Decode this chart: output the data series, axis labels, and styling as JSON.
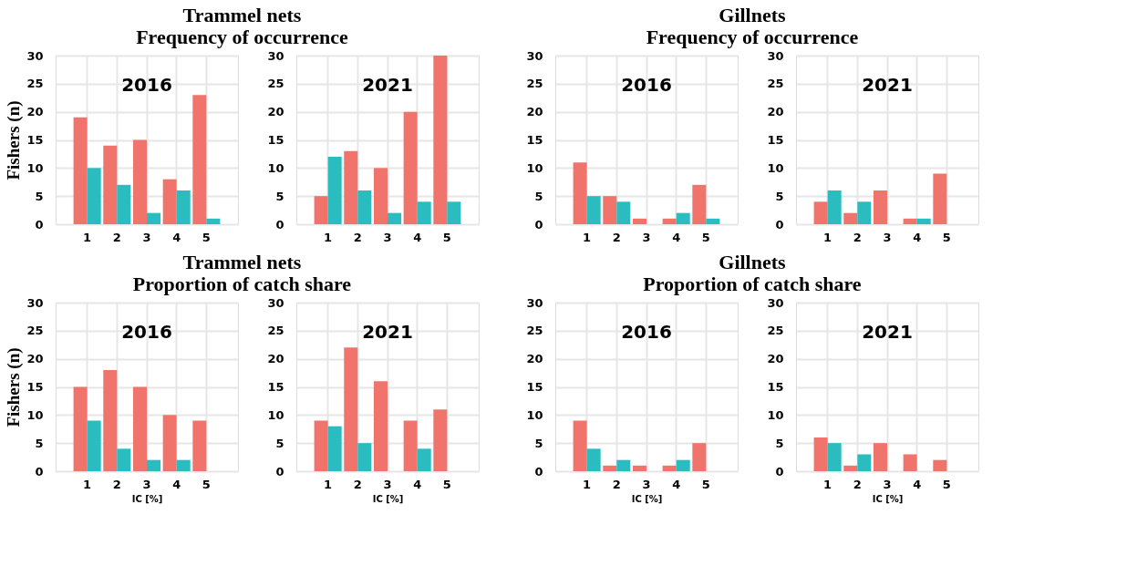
{
  "chart_data": [
    {
      "type": "bar",
      "title": "2016",
      "annotations": [
        "Trammel nets",
        "Frequency of occurrence"
      ],
      "ylabel": "Fishers (n)",
      "categories": [
        "1",
        "2",
        "3",
        "4",
        "5"
      ],
      "series": [
        {
          "color": "#f0736c",
          "values": [
            19,
            14,
            15,
            8,
            23
          ]
        },
        {
          "color": "#2bbcbf",
          "values": [
            10,
            7,
            2,
            6,
            1
          ]
        }
      ],
      "ylim": [
        0,
        30
      ],
      "yticks": [
        0,
        5,
        10,
        15,
        20,
        25,
        30
      ],
      "grid": true
    },
    {
      "type": "bar",
      "title": "2021",
      "categories": [
        "1",
        "2",
        "3",
        "4",
        "5"
      ],
      "series": [
        {
          "color": "#f0736c",
          "values": [
            5,
            13,
            10,
            20,
            30
          ]
        },
        {
          "color": "#2bbcbf",
          "values": [
            12,
            6,
            2,
            4,
            4
          ]
        }
      ],
      "ylim": [
        0,
        30
      ],
      "yticks": [
        0,
        5,
        10,
        15,
        20,
        25,
        30
      ],
      "grid": true
    },
    {
      "type": "bar",
      "title": "2016",
      "annotations": [
        "Gillnets",
        "Frequency of occurrence"
      ],
      "categories": [
        "1",
        "2",
        "3",
        "4",
        "5"
      ],
      "series": [
        {
          "color": "#f0736c",
          "values": [
            11,
            5,
            1,
            1,
            7
          ]
        },
        {
          "color": "#2bbcbf",
          "values": [
            5,
            4,
            null,
            2,
            1
          ]
        }
      ],
      "ylim": [
        0,
        30
      ],
      "yticks": [
        0,
        5,
        10,
        15,
        20,
        25,
        30
      ],
      "grid": true
    },
    {
      "type": "bar",
      "title": "2021",
      "categories": [
        "1",
        "2",
        "3",
        "4",
        "5"
      ],
      "series": [
        {
          "color": "#f0736c",
          "values": [
            4,
            2,
            6,
            1,
            9
          ]
        },
        {
          "color": "#2bbcbf",
          "values": [
            6,
            4,
            null,
            1,
            null
          ]
        }
      ],
      "ylim": [
        0,
        30
      ],
      "yticks": [
        0,
        5,
        10,
        15,
        20,
        25,
        30
      ],
      "grid": true
    },
    {
      "type": "bar",
      "title": "2016",
      "annotations": [
        "Trammel nets",
        "Proportion of catch share"
      ],
      "ylabel": "Fishers (n)",
      "xlabel": "IC [%]",
      "categories": [
        "1",
        "2",
        "3",
        "4",
        "5"
      ],
      "series": [
        {
          "color": "#f0736c",
          "values": [
            15,
            18,
            15,
            10,
            9
          ]
        },
        {
          "color": "#2bbcbf",
          "values": [
            9,
            4,
            2,
            2,
            null
          ]
        }
      ],
      "ylim": [
        0,
        30
      ],
      "yticks": [
        0,
        5,
        10,
        15,
        20,
        25,
        30
      ],
      "grid": true
    },
    {
      "type": "bar",
      "title": "2021",
      "xlabel": "IC [%]",
      "categories": [
        "1",
        "2",
        "3",
        "4",
        "5"
      ],
      "series": [
        {
          "color": "#f0736c",
          "values": [
            9,
            22,
            16,
            9,
            11
          ]
        },
        {
          "color": "#2bbcbf",
          "values": [
            8,
            5,
            null,
            4,
            null
          ]
        }
      ],
      "ylim": [
        0,
        30
      ],
      "yticks": [
        0,
        5,
        10,
        15,
        20,
        25,
        30
      ],
      "grid": true
    },
    {
      "type": "bar",
      "title": "2016",
      "annotations": [
        "Gillnets",
        "Proportion of catch share"
      ],
      "xlabel": "IC [%]",
      "categories": [
        "1",
        "2",
        "3",
        "4",
        "5"
      ],
      "series": [
        {
          "color": "#f0736c",
          "values": [
            9,
            1,
            1,
            1,
            5
          ]
        },
        {
          "color": "#2bbcbf",
          "values": [
            4,
            2,
            null,
            2,
            null
          ]
        }
      ],
      "ylim": [
        0,
        30
      ],
      "yticks": [
        0,
        5,
        10,
        15,
        20,
        25,
        30
      ],
      "grid": true
    },
    {
      "type": "bar",
      "title": "2021",
      "xlabel": "IC [%]",
      "categories": [
        "1",
        "2",
        "3",
        "4",
        "5"
      ],
      "series": [
        {
          "color": "#f0736c",
          "values": [
            6,
            1,
            5,
            3,
            2
          ]
        },
        {
          "color": "#2bbcbf",
          "values": [
            5,
            3,
            null,
            null,
            null
          ]
        }
      ],
      "ylim": [
        0,
        30
      ],
      "yticks": [
        0,
        5,
        10,
        15,
        20,
        25,
        30
      ],
      "grid": true
    }
  ]
}
